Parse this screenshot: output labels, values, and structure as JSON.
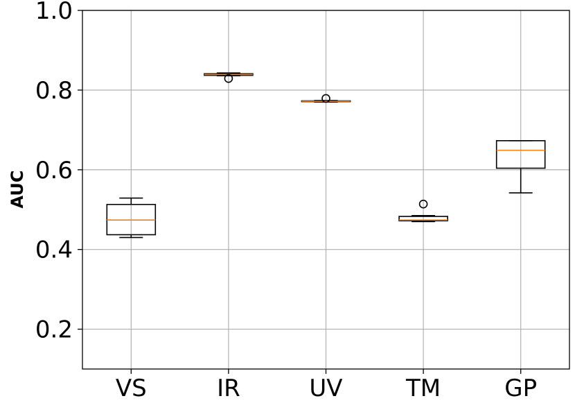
{
  "chart_data": {
    "type": "box",
    "title": "",
    "xlabel": "",
    "ylabel": "AUC",
    "ylim": [
      0.1,
      1.0
    ],
    "yticks": [
      "0.2",
      "0.4",
      "0.6",
      "0.8",
      "1.0"
    ],
    "ytick_values": [
      0.2,
      0.4,
      0.6,
      0.8,
      1.0
    ],
    "grid": true,
    "categories": [
      "VS",
      "IR",
      "UV",
      "TM",
      "GP"
    ],
    "boxes": [
      {
        "label": "VS",
        "whisker_low": 0.43,
        "q1": 0.437,
        "median": 0.474,
        "q3": 0.513,
        "whisker_high": 0.529,
        "outliers": []
      },
      {
        "label": "IR",
        "whisker_low": 0.836,
        "q1": 0.837,
        "median": 0.839,
        "q3": 0.841,
        "whisker_high": 0.843,
        "outliers": [
          0.829
        ]
      },
      {
        "label": "UV",
        "whisker_low": 0.77,
        "q1": 0.771,
        "median": 0.772,
        "q3": 0.773,
        "whisker_high": 0.774,
        "outliers": [
          0.779
        ]
      },
      {
        "label": "TM",
        "whisker_low": 0.47,
        "q1": 0.472,
        "median": 0.474,
        "q3": 0.483,
        "whisker_high": 0.485,
        "outliers": [
          0.514
        ]
      },
      {
        "label": "GP",
        "whisker_low": 0.542,
        "q1": 0.604,
        "median": 0.649,
        "q3": 0.673,
        "whisker_high": 0.673,
        "outliers": []
      }
    ],
    "colors": {
      "box": "#000000",
      "median": "#ff7f0e",
      "grid": "#b0b0b0"
    }
  }
}
